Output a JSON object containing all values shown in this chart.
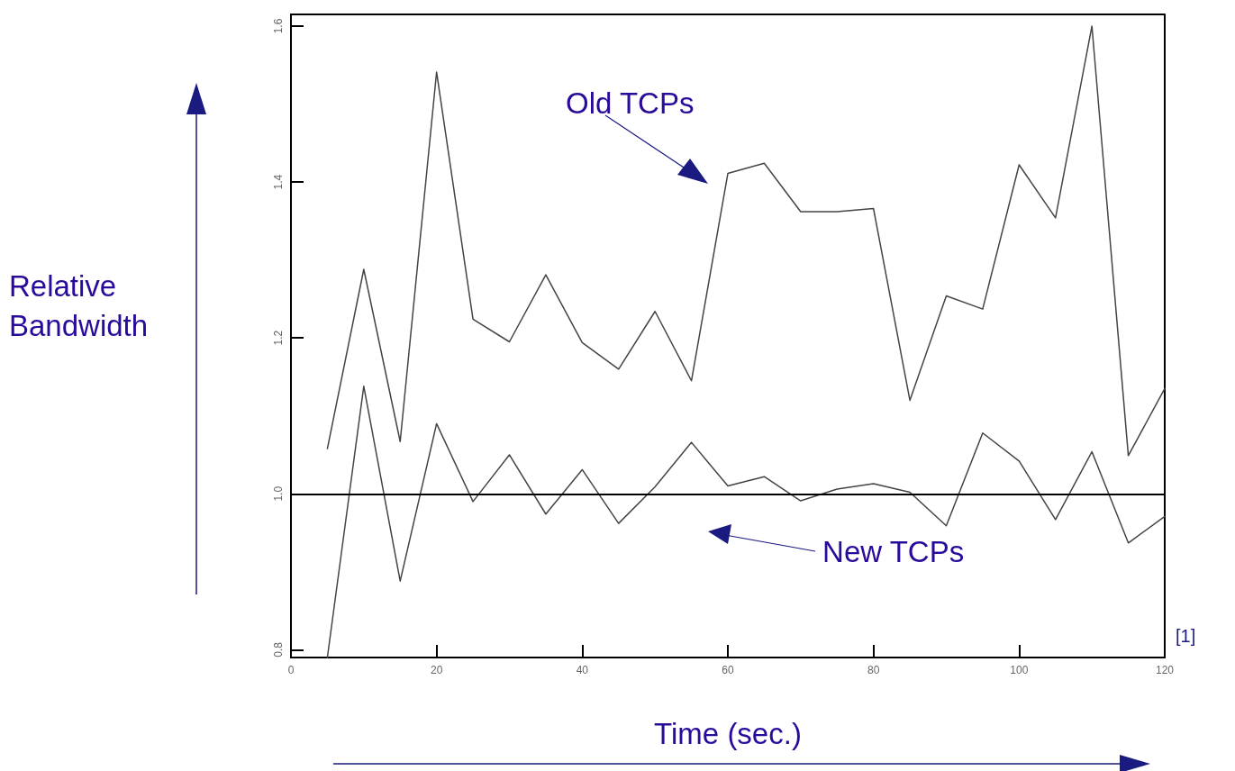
{
  "chart_data": {
    "type": "line",
    "xlabel": "Time (sec.)",
    "ylabel": "Relative Bandwidth",
    "x": [
      5,
      10,
      15,
      20,
      25,
      30,
      35,
      40,
      45,
      50,
      55,
      60,
      65,
      70,
      75,
      80,
      85,
      90,
      95,
      100,
      105,
      110,
      115,
      120
    ],
    "series": [
      {
        "name": "Old TCPs",
        "color": "#444444",
        "values": [
          1.058,
          1.288,
          1.067,
          1.541,
          1.224,
          1.195,
          1.281,
          1.194,
          1.16,
          1.234,
          1.145,
          1.411,
          1.424,
          1.362,
          1.362,
          1.366,
          1.12,
          1.254,
          1.237,
          1.422,
          1.354,
          1.6,
          1.049,
          1.135
        ]
      },
      {
        "name": "New TCPs",
        "color": "#444444",
        "values": [
          0.79,
          1.138,
          0.888,
          1.09,
          0.99,
          1.05,
          0.974,
          1.031,
          0.962,
          1.009,
          1.066,
          1.01,
          1.022,
          0.991,
          1.006,
          1.013,
          1.002,
          0.959,
          1.078,
          1.042,
          0.967,
          1.054,
          0.937,
          0.971
        ]
      }
    ],
    "xlim": [
      0,
      120
    ],
    "xticks": [
      0,
      20,
      40,
      60,
      80,
      100,
      120
    ],
    "ylim": [
      0.79,
      1.615
    ],
    "yticks": [
      0.8,
      {
        "value": 1.0,
        "label": "1.0"
      },
      1.2,
      1.4,
      1.6
    ],
    "ref_lines": [
      {
        "axis": "y",
        "value": 1.0,
        "color": "#000000"
      }
    ],
    "annotations": [
      "[1]"
    ],
    "grid": false,
    "legend": false,
    "marker": "none",
    "line_style": "solid"
  }
}
